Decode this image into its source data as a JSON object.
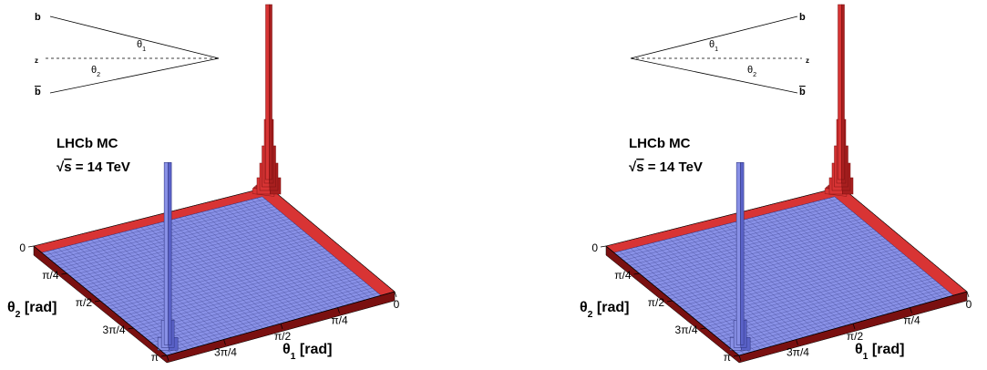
{
  "colors": {
    "blue_top": "#8890e6",
    "blue_side": "#5a62c8",
    "blue_edge": "#2a2f78",
    "red_top": "#d83434",
    "red_side": "#a81f1f",
    "red_dark": "#7a1010",
    "line": "#000000"
  },
  "chart_data": [
    {
      "type": "lego3d",
      "title": "LHCb MC",
      "subtitle_sqrt": "s",
      "subtitle_prefix": "√",
      "subtitle_rest": " = 14 TeV",
      "xlabel_sym": "θ",
      "xlabel_sub": "1",
      "xlabel_unit": " [rad]",
      "ylabel_sym": "θ",
      "ylabel_sub": "2",
      "ylabel_unit": " [rad]",
      "x_ticks": [
        "0",
        "π/4",
        "π/2",
        "3π/4",
        "π"
      ],
      "y_ticks": [
        "0",
        "π/4",
        "π/2",
        "3π/4",
        "π"
      ],
      "xlim": [
        0,
        3.1416
      ],
      "ylim": [
        0,
        3.1416
      ],
      "series": [
        {
          "name": "",
          "color": "red",
          "description_peak_corner": "theta1=0, theta2=0"
        },
        {
          "name": "",
          "color": "blue",
          "description_peak_corner": "theta1=pi, theta2=pi"
        }
      ],
      "inset": {
        "top_label": "b",
        "bottom_label": "b",
        "axis_label": "z",
        "angle1_sym": "θ",
        "angle1_sub": "1",
        "angle2_sym": "θ",
        "angle2_sub": "2"
      }
    },
    {
      "type": "lego3d",
      "title": "LHCb MC",
      "subtitle_sqrt": "s",
      "subtitle_prefix": "√",
      "subtitle_rest": " = 14 TeV",
      "xlabel_sym": "θ",
      "xlabel_sub": "1",
      "xlabel_unit": " [rad]",
      "ylabel_sym": "θ",
      "ylabel_sub": "2",
      "ylabel_unit": " [rad]",
      "x_ticks": [
        "0",
        "π/4",
        "π/2",
        "3π/4",
        "π"
      ],
      "y_ticks": [
        "0",
        "π/4",
        "π/2",
        "3π/4",
        "π"
      ],
      "xlim": [
        0,
        3.1416
      ],
      "ylim": [
        0,
        3.1416
      ],
      "series": [
        {
          "name": "",
          "color": "red",
          "description_peak_corner": "theta1=0, theta2=0"
        },
        {
          "name": "",
          "color": "blue",
          "description_peak_corner": "theta1=pi, theta2=pi"
        }
      ],
      "inset": {
        "top_label": "b",
        "bottom_label": "b",
        "axis_label": "z",
        "angle1_sym": "θ",
        "angle1_sub": "1",
        "angle2_sym": "θ",
        "angle2_sub": "2"
      }
    }
  ]
}
